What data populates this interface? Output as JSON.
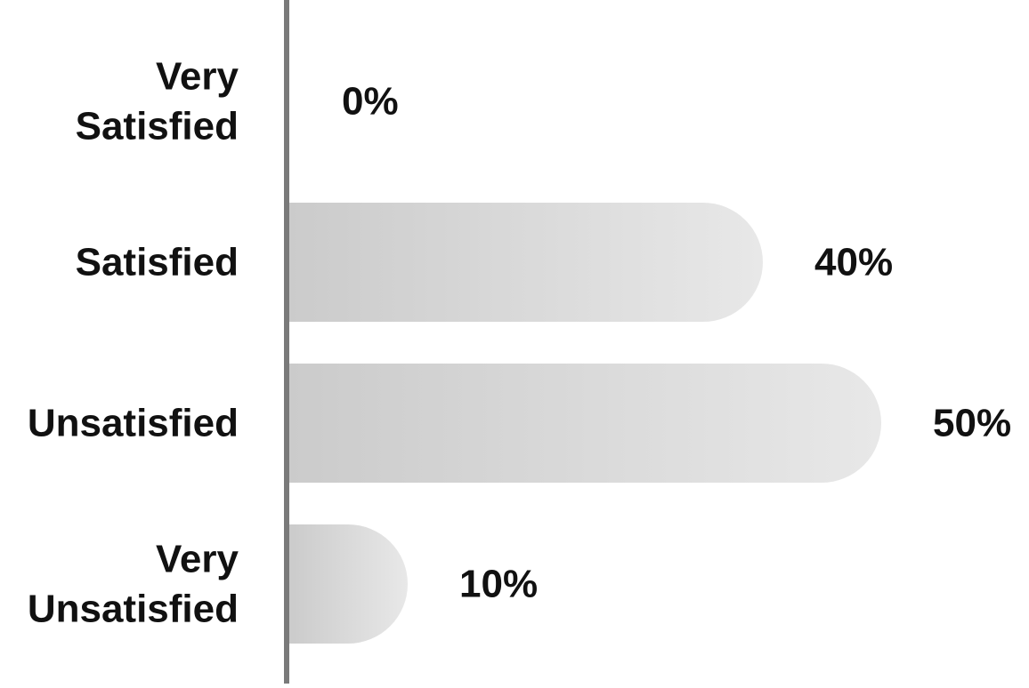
{
  "chart_data": {
    "type": "bar",
    "orientation": "horizontal",
    "categories": [
      [
        "Very",
        "Satisfied"
      ],
      [
        "Satisfied"
      ],
      [
        "Unsatisfied"
      ],
      [
        "Very",
        "Unsatisfied"
      ]
    ],
    "values": [
      0,
      40,
      50,
      10
    ],
    "data_labels": [
      "0%",
      "40%",
      "50%",
      "10%"
    ],
    "xlim": [
      0,
      50
    ],
    "unit": "%",
    "title": "",
    "xlabel": "",
    "ylabel": "",
    "grid": false,
    "legend": "none"
  },
  "colors": {
    "axis": "#7a7a7a",
    "bar_gradient_start": "#cbcbcb",
    "bar_gradient_end": "#e8e8e8",
    "text": "#111111"
  }
}
